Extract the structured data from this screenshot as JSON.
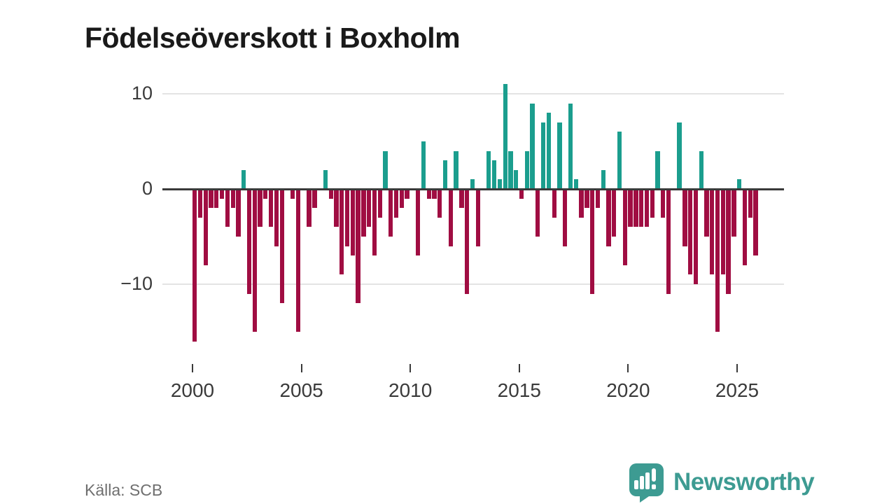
{
  "title": "Födelseöverskott i Boxholm",
  "source_label": "Källa: SCB",
  "brand": {
    "name": "Newsworthy",
    "color": "#3d9b92"
  },
  "colors": {
    "positive_bar": "#1b9e8e",
    "negative_bar": "#a00d42",
    "axis_line": "#3a3a3a",
    "gridline": "#e3e3e3",
    "tick_text": "#3a3a3a",
    "muted_text": "#6f6f6f",
    "title_text": "#1a1a1a"
  },
  "chart_data": {
    "type": "bar",
    "title": "Födelseöverskott i Boxholm",
    "frequency": "quarterly",
    "start": "2000Q1",
    "end": "2025Q4",
    "xlabel": "",
    "ylabel": "",
    "y_ticks": [
      10,
      0,
      -10
    ],
    "x_ticks": [
      2000,
      2005,
      2010,
      2015,
      2020,
      2025
    ],
    "ylim": [
      -17,
      12
    ],
    "grid": true,
    "legend": false,
    "series_name": "Födelseöverskott per kvartal",
    "values_by_year": [
      {
        "year": 2000,
        "q": [
          -16,
          -3,
          -8,
          -2
        ]
      },
      {
        "year": 2001,
        "q": [
          -2,
          -1,
          -4,
          -2
        ]
      },
      {
        "year": 2002,
        "q": [
          -5,
          2,
          -11,
          -15
        ]
      },
      {
        "year": 2003,
        "q": [
          -4,
          -1,
          -4,
          -6
        ]
      },
      {
        "year": 2004,
        "q": [
          -12,
          0,
          -1,
          -15
        ]
      },
      {
        "year": 2005,
        "q": [
          0,
          -4,
          -2,
          0
        ]
      },
      {
        "year": 2006,
        "q": [
          2,
          -1,
          -4,
          -9
        ]
      },
      {
        "year": 2007,
        "q": [
          -6,
          -7,
          -12,
          -5
        ]
      },
      {
        "year": 2008,
        "q": [
          -4,
          -7,
          -3,
          4
        ]
      },
      {
        "year": 2009,
        "q": [
          -5,
          -3,
          -2,
          -1
        ]
      },
      {
        "year": 2010,
        "q": [
          0,
          -7,
          5,
          -1
        ]
      },
      {
        "year": 2011,
        "q": [
          -1,
          -3,
          3,
          -6
        ]
      },
      {
        "year": 2012,
        "q": [
          4,
          -2,
          -11,
          1
        ]
      },
      {
        "year": 2013,
        "q": [
          -6,
          0,
          4,
          3
        ]
      },
      {
        "year": 2014,
        "q": [
          1,
          11,
          4,
          2
        ]
      },
      {
        "year": 2015,
        "q": [
          -1,
          4,
          9,
          -5
        ]
      },
      {
        "year": 2016,
        "q": [
          7,
          8,
          -3,
          7
        ]
      },
      {
        "year": 2017,
        "q": [
          -6,
          9,
          1,
          -3
        ]
      },
      {
        "year": 2018,
        "q": [
          -2,
          -11,
          -2,
          2
        ]
      },
      {
        "year": 2019,
        "q": [
          -6,
          -5,
          6,
          -8
        ]
      },
      {
        "year": 2020,
        "q": [
          -4,
          -4,
          -4,
          -4
        ]
      },
      {
        "year": 2021,
        "q": [
          -3,
          4,
          -3,
          -11
        ]
      },
      {
        "year": 2022,
        "q": [
          0,
          7,
          -6,
          -9
        ]
      },
      {
        "year": 2023,
        "q": [
          -10,
          4,
          -5,
          -9
        ]
      },
      {
        "year": 2024,
        "q": [
          -15,
          -9,
          -11,
          -5
        ]
      },
      {
        "year": 2025,
        "q": [
          1,
          -8,
          -3,
          -7
        ]
      }
    ]
  }
}
